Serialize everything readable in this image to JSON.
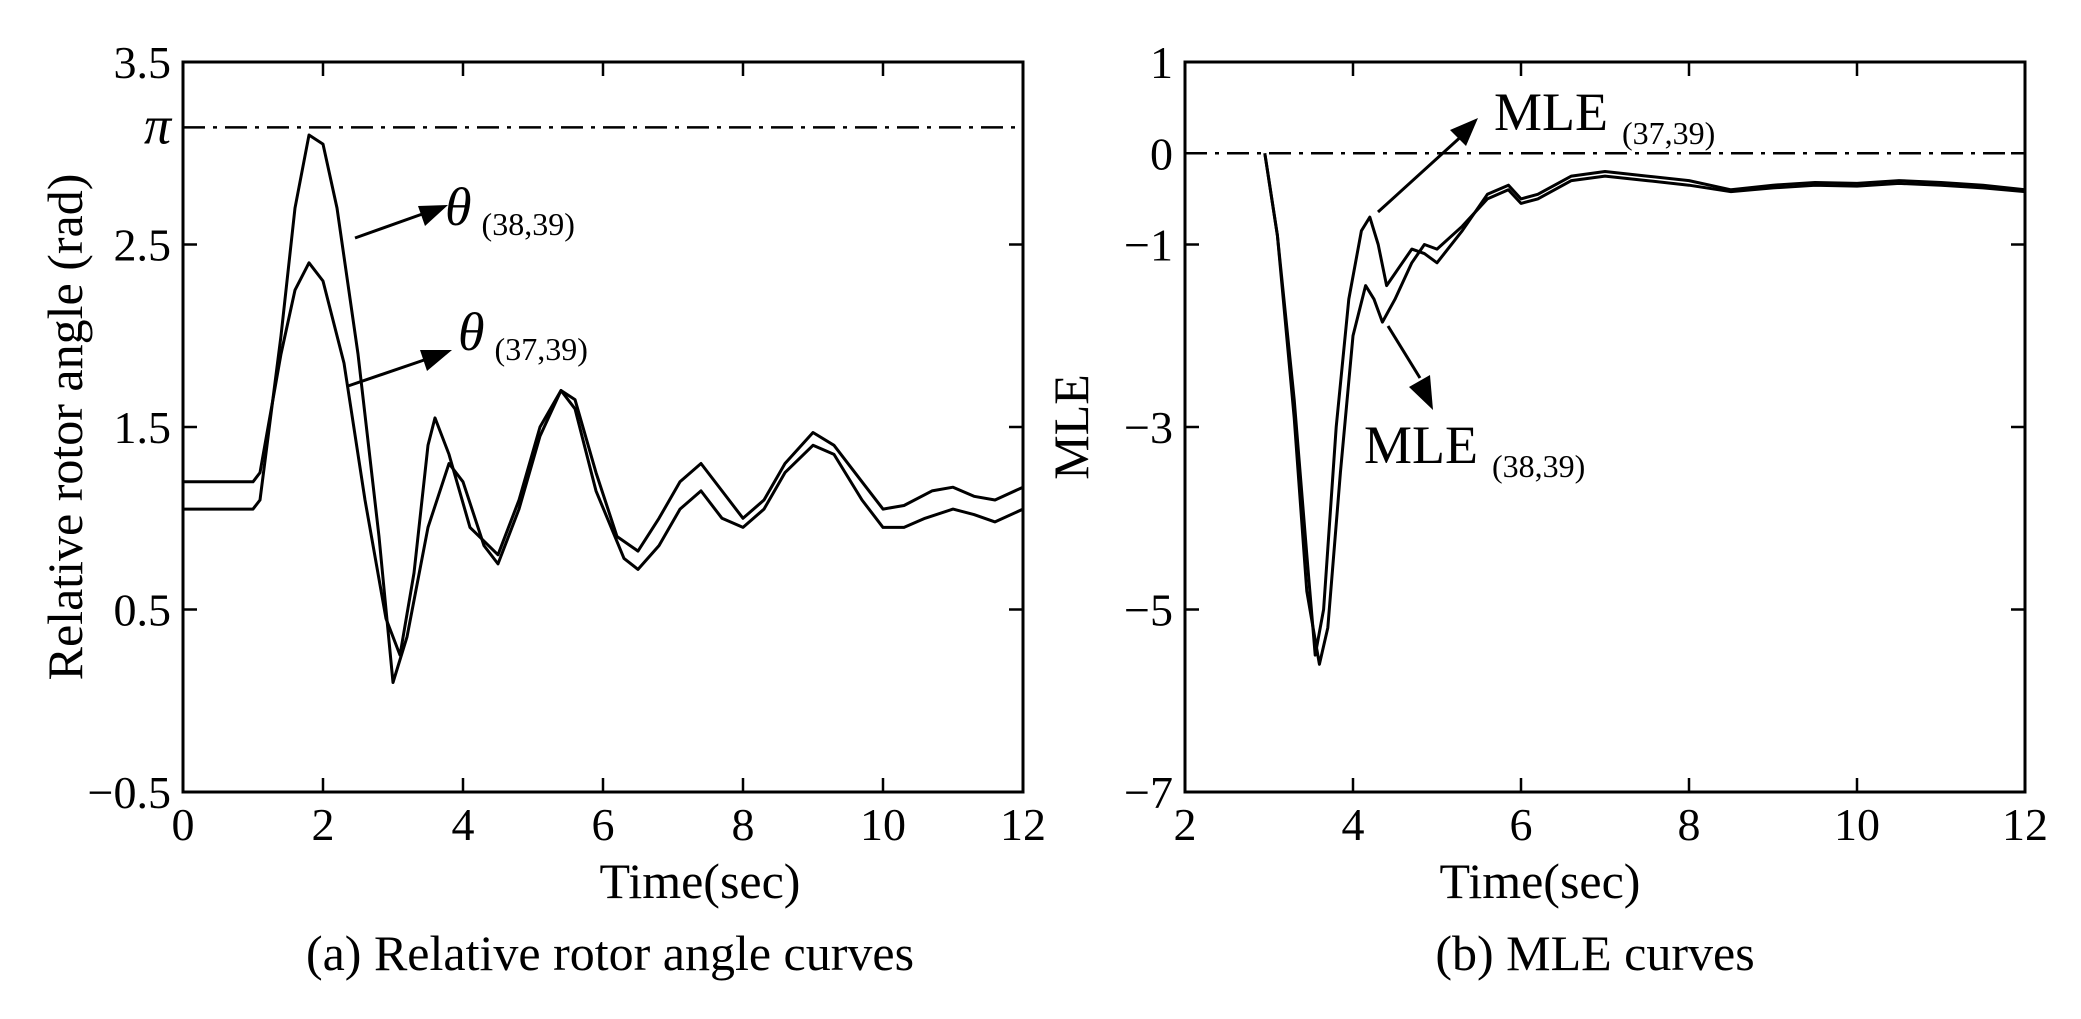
{
  "chart_data": [
    {
      "type": "line",
      "caption": "(a) Relative rotor angle curves",
      "xlabel": "Time(sec)",
      "ylabel": "Relative rotor angle (rad)",
      "xlim": [
        0,
        12
      ],
      "ylim": [
        -0.5,
        3.5
      ],
      "xticks": [
        "0",
        "2",
        "4",
        "6",
        "8",
        "10",
        "12"
      ],
      "xtick_values": [
        0,
        2,
        4,
        6,
        8,
        10,
        12
      ],
      "yticks": [
        "−0.5",
        "0.5",
        "1.5",
        "2.5",
        "3.5"
      ],
      "ytick_values": [
        -0.5,
        0.5,
        1.5,
        2.5,
        3.5
      ],
      "reference_line": {
        "label": "π",
        "y": 3.1416
      },
      "series": [
        {
          "name": "θ (38,39)",
          "points": [
            [
              0,
              1.05
            ],
            [
              1.0,
              1.05
            ],
            [
              1.1,
              1.1
            ],
            [
              1.4,
              2.0
            ],
            [
              1.6,
              2.7
            ],
            [
              1.8,
              3.1
            ],
            [
              2.0,
              3.05
            ],
            [
              2.2,
              2.7
            ],
            [
              2.5,
              1.9
            ],
            [
              2.8,
              0.9
            ],
            [
              3.0,
              0.1
            ],
            [
              3.2,
              0.35
            ],
            [
              3.5,
              0.95
            ],
            [
              3.8,
              1.3
            ],
            [
              4.0,
              1.2
            ],
            [
              4.3,
              0.85
            ],
            [
              4.5,
              0.75
            ],
            [
              4.8,
              1.05
            ],
            [
              5.1,
              1.45
            ],
            [
              5.4,
              1.7
            ],
            [
              5.6,
              1.6
            ],
            [
              5.9,
              1.15
            ],
            [
              6.3,
              0.78
            ],
            [
              6.5,
              0.72
            ],
            [
              6.8,
              0.85
            ],
            [
              7.1,
              1.05
            ],
            [
              7.4,
              1.15
            ],
            [
              7.7,
              1.0
            ],
            [
              8.0,
              0.95
            ],
            [
              8.3,
              1.05
            ],
            [
              8.6,
              1.25
            ],
            [
              9.0,
              1.4
            ],
            [
              9.3,
              1.35
            ],
            [
              9.7,
              1.1
            ],
            [
              10.0,
              0.95
            ],
            [
              10.3,
              0.95
            ],
            [
              10.6,
              1.0
            ],
            [
              11.0,
              1.05
            ],
            [
              11.3,
              1.02
            ],
            [
              11.6,
              0.98
            ],
            [
              12.0,
              1.05
            ]
          ],
          "label_position": "near first peak"
        },
        {
          "name": "θ (37,39)",
          "points": [
            [
              0,
              1.2
            ],
            [
              1.0,
              1.2
            ],
            [
              1.1,
              1.25
            ],
            [
              1.4,
              1.9
            ],
            [
              1.6,
              2.25
            ],
            [
              1.8,
              2.4
            ],
            [
              2.0,
              2.3
            ],
            [
              2.3,
              1.85
            ],
            [
              2.6,
              1.1
            ],
            [
              2.9,
              0.45
            ],
            [
              3.1,
              0.25
            ],
            [
              3.3,
              0.7
            ],
            [
              3.5,
              1.4
            ],
            [
              3.6,
              1.55
            ],
            [
              3.8,
              1.35
            ],
            [
              4.1,
              0.95
            ],
            [
              4.5,
              0.8
            ],
            [
              4.8,
              1.1
            ],
            [
              5.1,
              1.5
            ],
            [
              5.4,
              1.7
            ],
            [
              5.6,
              1.65
            ],
            [
              5.9,
              1.25
            ],
            [
              6.2,
              0.9
            ],
            [
              6.5,
              0.82
            ],
            [
              6.8,
              1.0
            ],
            [
              7.1,
              1.2
            ],
            [
              7.4,
              1.3
            ],
            [
              7.7,
              1.15
            ],
            [
              8.0,
              1.0
            ],
            [
              8.3,
              1.1
            ],
            [
              8.6,
              1.3
            ],
            [
              9.0,
              1.47
            ],
            [
              9.3,
              1.4
            ],
            [
              9.7,
              1.2
            ],
            [
              10.0,
              1.05
            ],
            [
              10.3,
              1.07
            ],
            [
              10.7,
              1.15
            ],
            [
              11.0,
              1.17
            ],
            [
              11.3,
              1.12
            ],
            [
              11.6,
              1.1
            ],
            [
              12.0,
              1.17
            ]
          ],
          "label_position": "middle of first peak"
        }
      ],
      "annotations": [
        {
          "symbol": "θ",
          "subscript": "(38,39)"
        },
        {
          "symbol": "θ",
          "subscript": "(37,39)"
        }
      ]
    },
    {
      "type": "line",
      "caption": "(b) MLE curves",
      "xlabel": "Time(sec)",
      "ylabel": "MLE",
      "xlim": [
        2,
        12
      ],
      "ylim": [
        -7,
        1
      ],
      "xticks": [
        "2",
        "4",
        "6",
        "8",
        "10",
        "12"
      ],
      "xtick_values": [
        2,
        4,
        6,
        8,
        10,
        12
      ],
      "yticks": [
        "−7",
        "−5",
        "−3",
        "−1",
        "0",
        "1"
      ],
      "ytick_values": [
        -7,
        -5,
        -3,
        -1,
        0,
        1
      ],
      "reference_line": {
        "label": "",
        "y": 0
      },
      "series": [
        {
          "name": "MLE (37,39)",
          "points": [
            [
              2.95,
              0.0
            ],
            [
              3.1,
              -0.9
            ],
            [
              3.3,
              -2.7
            ],
            [
              3.45,
              -4.4
            ],
            [
              3.55,
              -5.5
            ],
            [
              3.65,
              -5.0
            ],
            [
              3.8,
              -3.0
            ],
            [
              3.95,
              -1.6
            ],
            [
              4.1,
              -0.85
            ],
            [
              4.2,
              -0.7
            ],
            [
              4.3,
              -1.0
            ],
            [
              4.4,
              -1.45
            ],
            [
              4.55,
              -1.25
            ],
            [
              4.7,
              -1.05
            ],
            [
              4.85,
              -1.1
            ],
            [
              5.0,
              -1.2
            ],
            [
              5.3,
              -0.85
            ],
            [
              5.6,
              -0.45
            ],
            [
              5.85,
              -0.35
            ],
            [
              6.0,
              -0.5
            ],
            [
              6.2,
              -0.45
            ],
            [
              6.6,
              -0.25
            ],
            [
              7.0,
              -0.2
            ],
            [
              7.5,
              -0.25
            ],
            [
              8.0,
              -0.3
            ],
            [
              8.5,
              -0.4
            ],
            [
              9.0,
              -0.35
            ],
            [
              9.5,
              -0.32
            ],
            [
              10.0,
              -0.33
            ],
            [
              10.5,
              -0.3
            ],
            [
              11.0,
              -0.32
            ],
            [
              11.5,
              -0.35
            ],
            [
              12.0,
              -0.4
            ]
          ],
          "label_position": "upper"
        },
        {
          "name": "MLE (38,39)",
          "points": [
            [
              2.95,
              0.0
            ],
            [
              3.1,
              -0.9
            ],
            [
              3.3,
              -2.9
            ],
            [
              3.45,
              -4.8
            ],
            [
              3.6,
              -5.6
            ],
            [
              3.7,
              -5.2
            ],
            [
              3.85,
              -3.5
            ],
            [
              4.0,
              -2.0
            ],
            [
              4.15,
              -1.45
            ],
            [
              4.25,
              -1.6
            ],
            [
              4.35,
              -1.85
            ],
            [
              4.5,
              -1.6
            ],
            [
              4.7,
              -1.2
            ],
            [
              4.85,
              -1.0
            ],
            [
              5.0,
              -1.05
            ],
            [
              5.3,
              -0.8
            ],
            [
              5.6,
              -0.5
            ],
            [
              5.85,
              -0.4
            ],
            [
              6.0,
              -0.55
            ],
            [
              6.2,
              -0.5
            ],
            [
              6.6,
              -0.3
            ],
            [
              7.0,
              -0.25
            ],
            [
              7.5,
              -0.3
            ],
            [
              8.0,
              -0.35
            ],
            [
              8.5,
              -0.42
            ],
            [
              9.0,
              -0.38
            ],
            [
              9.5,
              -0.35
            ],
            [
              10.0,
              -0.36
            ],
            [
              10.5,
              -0.33
            ],
            [
              11.0,
              -0.35
            ],
            [
              11.5,
              -0.38
            ],
            [
              12.0,
              -0.42
            ]
          ],
          "label_position": "lower"
        }
      ],
      "annotations": [
        {
          "symbol": "MLE",
          "subscript": "(37,39)"
        },
        {
          "symbol": "MLE",
          "subscript": "(38,39)"
        }
      ]
    }
  ]
}
